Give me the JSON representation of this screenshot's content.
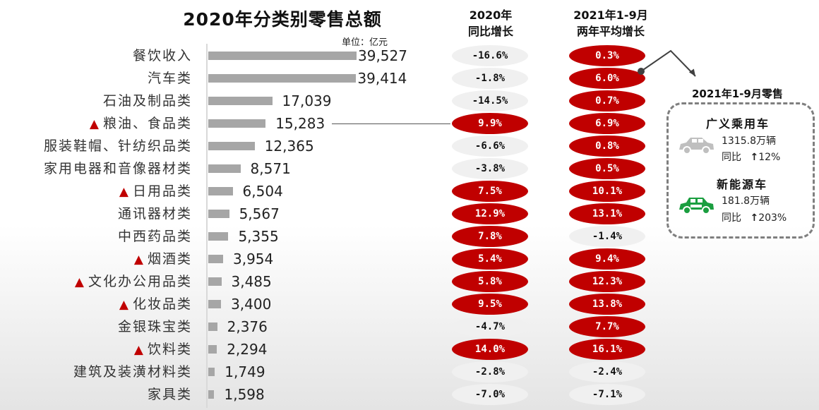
{
  "chart_data": {
    "type": "bar",
    "orientation": "horizontal",
    "title": "2020年分类别零售总额",
    "unit_label": "单位：亿元",
    "categories": [
      "餐饮收入",
      "汽车类",
      "石油及制品类",
      "粮油、食品类",
      "服装鞋帽、针纺织品类",
      "家用电器和音像器材类",
      "日用品类",
      "通讯器材类",
      "中西药品类",
      "烟酒类",
      "文化办公用品类",
      "化妆品类",
      "金银珠宝类",
      "饮料类",
      "建筑及装潢材料类",
      "家具类"
    ],
    "highlighted": [
      false,
      false,
      false,
      true,
      false,
      false,
      true,
      false,
      false,
      true,
      true,
      true,
      false,
      true,
      false,
      false
    ],
    "values": [
      39527,
      39414,
      17039,
      15283,
      12365,
      8571,
      6504,
      5567,
      5355,
      3954,
      3485,
      3400,
      2376,
      2294,
      1749,
      1598
    ],
    "value_labels": [
      "39,527",
      "39,414",
      "17,039",
      "15,283",
      "12,365",
      "8,571",
      "6,504",
      "5,567",
      "5,355",
      "3,954",
      "3,485",
      "3,400",
      "2,376",
      "2,294",
      "1,749",
      "1,598"
    ],
    "xlim": [
      0,
      39527
    ],
    "growth_columns": [
      {
        "header_line1": "2020年",
        "header_line2": "同比增长",
        "values": [
          "-16.6%",
          "-1.8%",
          "-14.5%",
          "9.9%",
          "-6.6%",
          "-3.8%",
          "7.5%",
          "12.9%",
          "7.8%",
          "5.4%",
          "5.8%",
          "9.5%",
          "-4.7%",
          "14.0%",
          "-2.8%",
          "-7.0%"
        ]
      },
      {
        "header_line1": "2021年1-9月",
        "header_line2": "两年平均增长",
        "values": [
          "0.3%",
          "6.0%",
          "0.7%",
          "6.9%",
          "0.8%",
          "0.5%",
          "10.1%",
          "13.1%",
          "-1.4%",
          "9.4%",
          "12.3%",
          "13.8%",
          "7.7%",
          "16.1%",
          "-2.4%",
          "-7.1%"
        ]
      }
    ],
    "highlight_marker": "▲"
  },
  "colors": {
    "bar": "#a6a6a6",
    "positive_pill": "#c00000",
    "negative_pill": "#f0f0f0",
    "marker": "#c00000",
    "ev_car": "#1a9e3f",
    "passenger_car": "#bfbfbf"
  },
  "callout": {
    "title": "2021年1-9月零售",
    "segments": [
      {
        "name": "广义乘用车",
        "volume": "1315.8万辆",
        "yoy_label": "同比",
        "yoy_arrow": "↑",
        "yoy_value": "12%",
        "icon": "car-icon"
      },
      {
        "name": "新能源车",
        "volume": "181.8万辆",
        "yoy_label": "同比",
        "yoy_arrow": "↑",
        "yoy_value": "203%",
        "icon": "electric-car-icon"
      }
    ]
  }
}
